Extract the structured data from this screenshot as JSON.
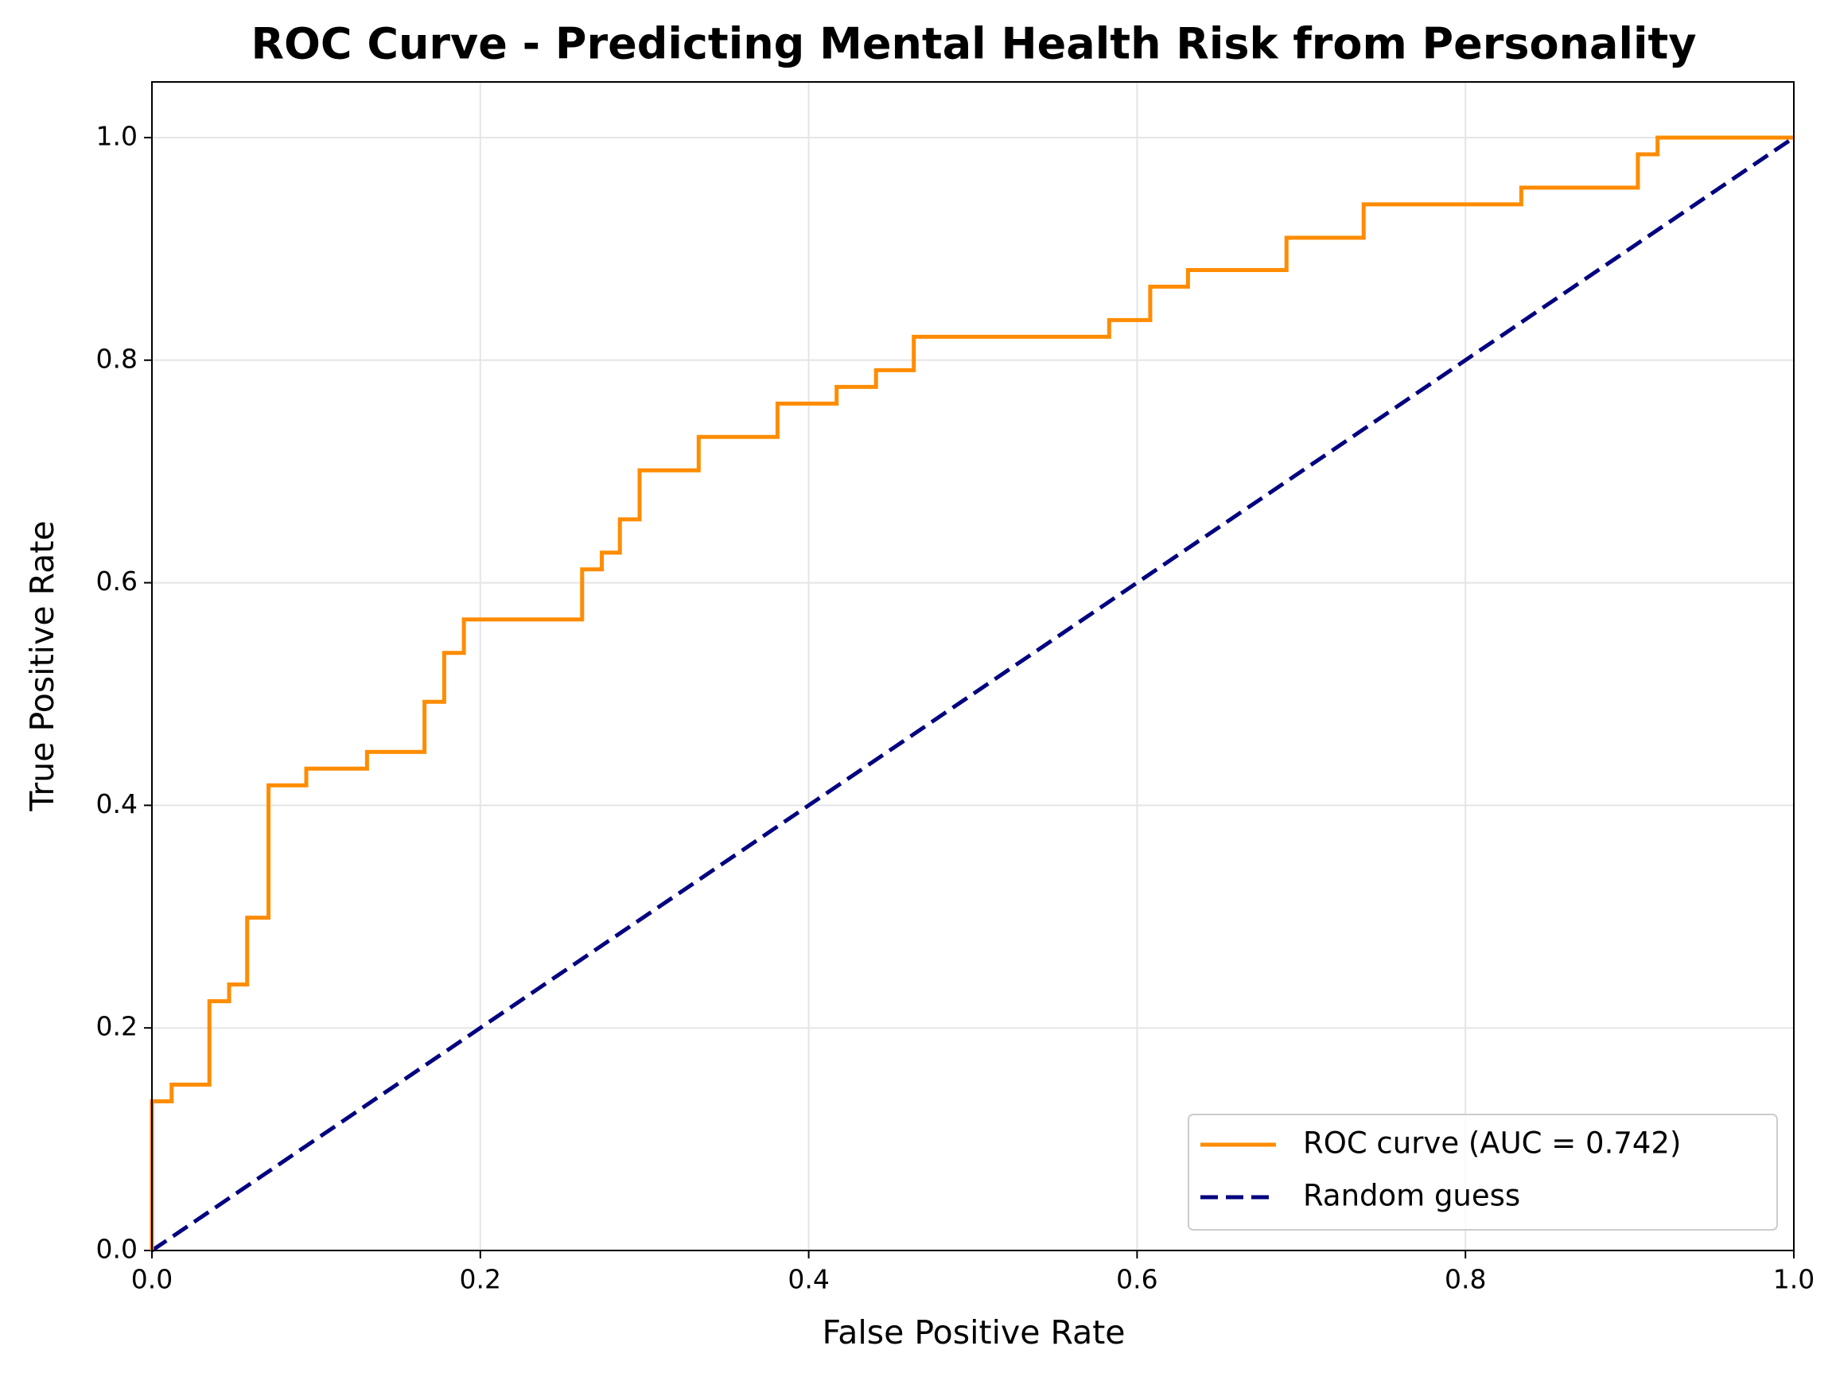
{
  "chart_data": {
    "type": "line",
    "title": "ROC Curve - Predicting Mental Health Risk from Personality",
    "xlabel": "False Positive Rate",
    "ylabel": "True Positive Rate",
    "xlim": [
      0,
      1
    ],
    "ylim": [
      0,
      1.05
    ],
    "xticks": [
      {
        "value": 0,
        "label": "0.0"
      },
      0.2,
      0.4,
      0.6,
      0.8,
      {
        "value": 1,
        "label": "1.0"
      }
    ],
    "yticks": [
      {
        "value": 0,
        "label": "0.0"
      },
      0.2,
      0.4,
      0.6,
      0.8,
      {
        "value": 1,
        "label": "1.0"
      }
    ],
    "grid": true,
    "legend": "lower right",
    "series": [
      {
        "name": "ROC curve (AUC = 0.742)",
        "color": "#ff8c00",
        "dash": "solid",
        "x": [
          0,
          0,
          0.012,
          0.012,
          0.035,
          0.035,
          0.047,
          0.047,
          0.058,
          0.058,
          0.071,
          0.071,
          0.094,
          0.094,
          0.131,
          0.131,
          0.166,
          0.166,
          0.178,
          0.178,
          0.19,
          0.19,
          0.262,
          0.262,
          0.274,
          0.274,
          0.285,
          0.285,
          0.297,
          0.297,
          0.333,
          0.333,
          0.381,
          0.381,
          0.417,
          0.417,
          0.441,
          0.441,
          0.464,
          0.464,
          0.583,
          0.583,
          0.608,
          0.608,
          0.631,
          0.631,
          0.691,
          0.691,
          0.738,
          0.738,
          0.834,
          0.834,
          0.905,
          0.905,
          0.917,
          0.917,
          1
        ],
        "values": [
          0,
          0.134,
          0.134,
          0.149,
          0.149,
          0.224,
          0.224,
          0.239,
          0.239,
          0.299,
          0.299,
          0.418,
          0.418,
          0.433,
          0.433,
          0.448,
          0.448,
          0.493,
          0.493,
          0.537,
          0.537,
          0.567,
          0.567,
          0.612,
          0.612,
          0.627,
          0.627,
          0.657,
          0.657,
          0.701,
          0.701,
          0.731,
          0.731,
          0.761,
          0.761,
          0.776,
          0.776,
          0.791,
          0.791,
          0.821,
          0.821,
          0.836,
          0.836,
          0.866,
          0.866,
          0.881,
          0.881,
          0.91,
          0.91,
          0.94,
          0.94,
          0.955,
          0.955,
          0.985,
          0.985,
          1,
          1
        ]
      },
      {
        "name": "Random guess",
        "color": "#000080",
        "dash": "dashed",
        "x": [
          0,
          1
        ],
        "values": [
          0,
          1
        ]
      }
    ]
  }
}
